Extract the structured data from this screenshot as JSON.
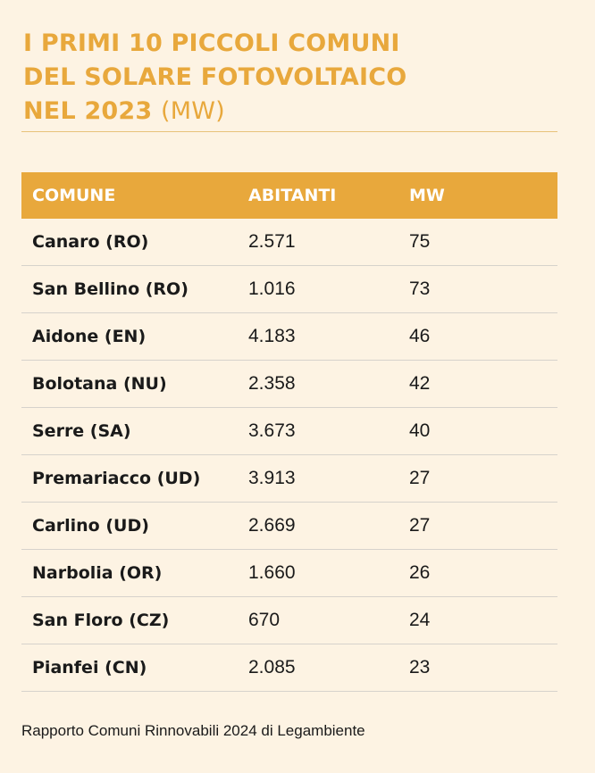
{
  "title": {
    "line1": "I PRIMI 10 PICCOLI COMUNI",
    "line2": "DEL SOLARE FOTOVOLTAICO",
    "line3": "NEL 2023",
    "unit": "(MW)"
  },
  "table": {
    "headers": [
      "COMUNE",
      "ABITANTI",
      "MW"
    ],
    "rows": [
      [
        "Canaro (RO)",
        "2.571",
        "75"
      ],
      [
        "San Bellino (RO)",
        "1.016",
        "73"
      ],
      [
        "Aidone (EN)",
        "4.183",
        "46"
      ],
      [
        "Bolotana (NU)",
        "2.358",
        "42"
      ],
      [
        "Serre (SA)",
        "3.673",
        "40"
      ],
      [
        "Premariacco (UD)",
        "3.913",
        "27"
      ],
      [
        "Carlino (UD)",
        "2.669",
        "27"
      ],
      [
        "Narbolia (OR)",
        "1.660",
        "26"
      ],
      [
        "San Floro (CZ)",
        "670",
        "24"
      ],
      [
        "Pianfei (CN)",
        "2.085",
        "23"
      ]
    ]
  },
  "source": "Rapporto Comuni Rinnovabili 2024 di Legambiente",
  "colors": {
    "accent": "#e8a83c",
    "background": "#fdf3e3",
    "row_divider": "#d6d2cc",
    "text": "#1a1a1a"
  }
}
